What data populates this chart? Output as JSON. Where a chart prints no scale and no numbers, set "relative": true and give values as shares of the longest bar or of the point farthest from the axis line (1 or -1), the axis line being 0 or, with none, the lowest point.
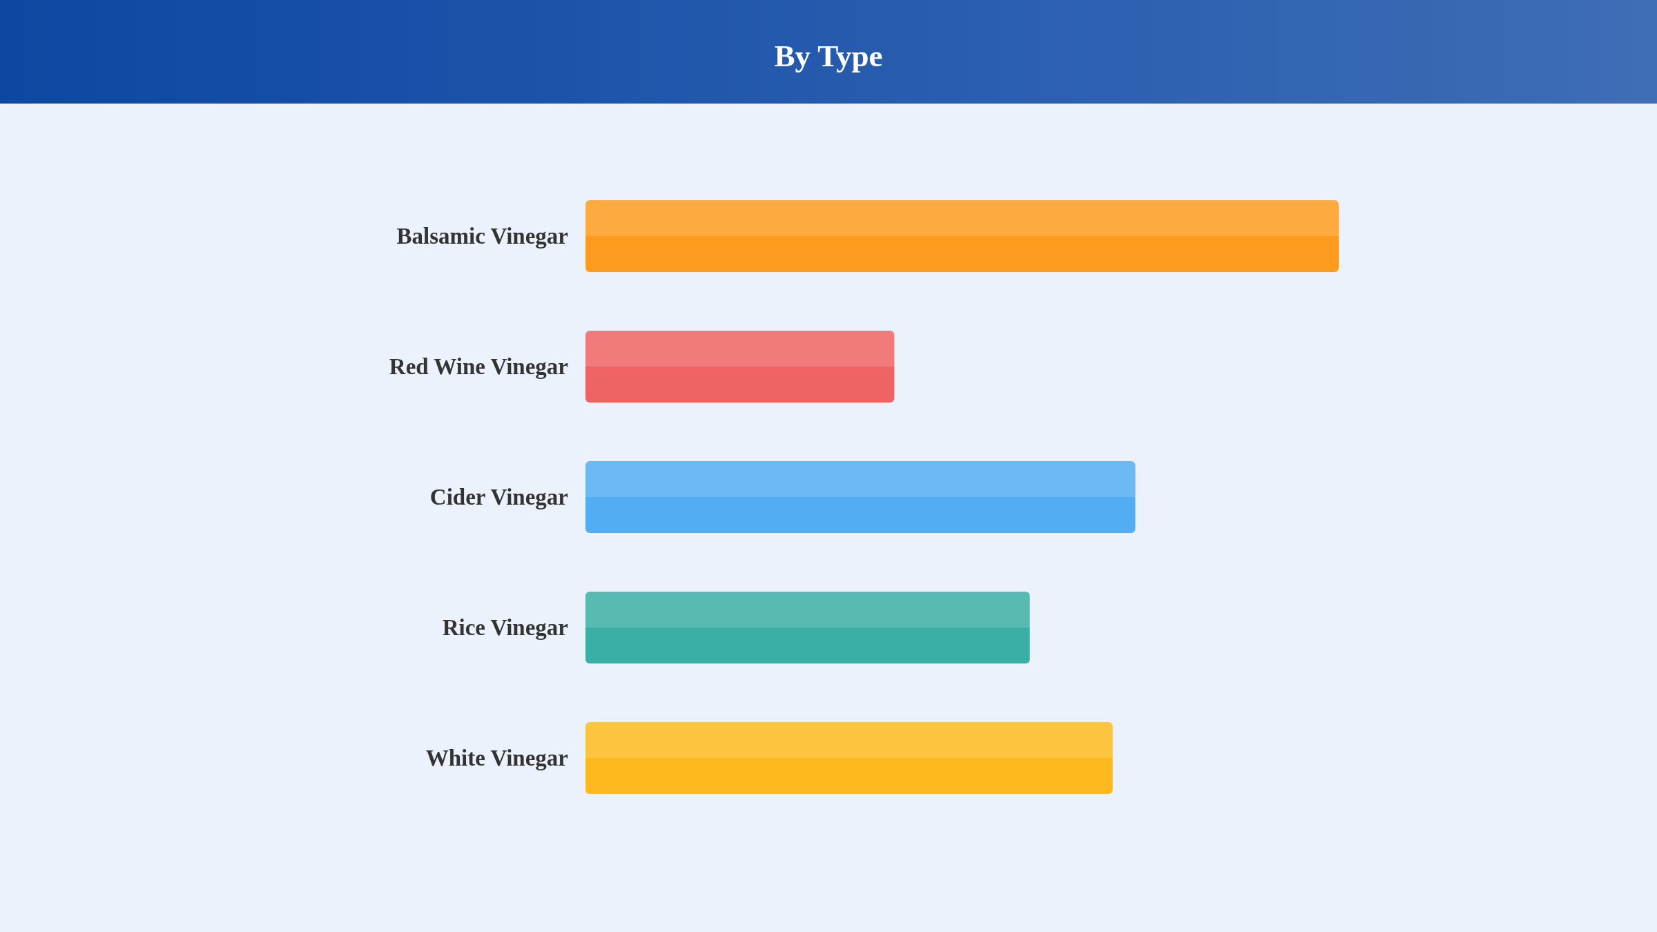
{
  "chart_data": {
    "type": "bar",
    "title": "By Type",
    "orientation": "horizontal",
    "relative": true,
    "categories": [
      "Balsamic Vinegar",
      "Red Wine Vinegar",
      "Cider Vinegar",
      "Rice Vinegar",
      "White Vinegar"
    ],
    "values": [
      1,
      0.41,
      0.73,
      0.59,
      0.7
    ],
    "colors": [
      "#fd9b1e",
      "#ee6464",
      "#52adf3",
      "#3aafa5",
      "#fdb91e"
    ]
  }
}
